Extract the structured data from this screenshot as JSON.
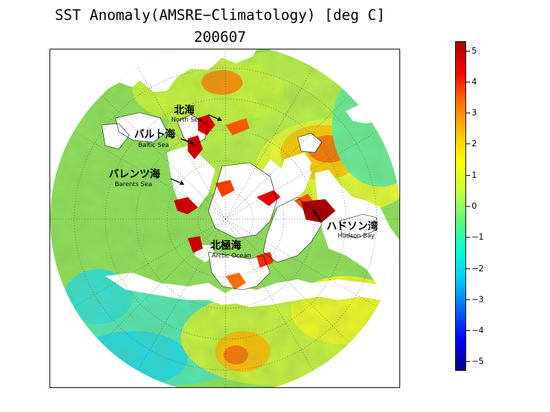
{
  "title": "SST Anomaly(AMSRE−Climatology) [deg C]",
  "subtitle": "200607",
  "colorbar": {
    "min": -5.3,
    "max": 5.3,
    "ticks": [
      "5",
      "4",
      "3",
      "2",
      "1",
      "0",
      "−1",
      "−2",
      "−3",
      "−4",
      "−5"
    ],
    "tick_values": [
      5,
      4,
      3,
      2,
      1,
      0,
      -1,
      -2,
      -3,
      -4,
      -5
    ],
    "colors": [
      "#00008c",
      "#0000ff",
      "#0064ff",
      "#00c8ff",
      "#00ffd2",
      "#5aff78",
      "#c8ff3c",
      "#ffff00",
      "#ffbe00",
      "#ff6e00",
      "#ff0000",
      "#a50000"
    ]
  },
  "annotations": [
    {
      "jp": "北海",
      "en": "North Sea"
    },
    {
      "jp": "バルト海",
      "en": "Baltic Sea"
    },
    {
      "jp": "バレンツ海",
      "en": "Barents Sea"
    },
    {
      "jp": "北極海",
      "en": "Arctic Ocean"
    },
    {
      "jp": "ハドソン湾",
      "en": "Hudson Bay"
    }
  ]
}
